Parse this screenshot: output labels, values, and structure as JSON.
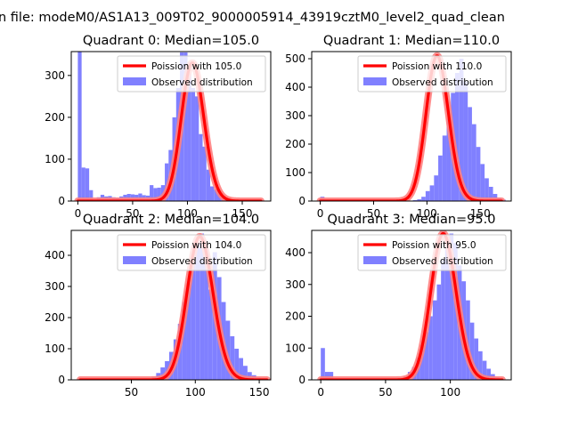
{
  "figure_title": "n file: modeM0/AS1A13_009T02_9000005914_43919cztM0_level2_quad_clean",
  "colors": {
    "histogram": "#8080ff",
    "poisson_line": "#ff0000",
    "poisson_glow": "#ff8080",
    "axes": "#000000"
  },
  "chart_data": [
    {
      "type": "bar",
      "title": "Quadrant 0: Median=105.0",
      "xlim": [
        -6,
        176
      ],
      "ylim": [
        0,
        357
      ],
      "xticks": [
        0,
        50,
        100,
        150
      ],
      "yticks": [
        0,
        100,
        200,
        300
      ],
      "grid": false,
      "legend_position": "top-right",
      "hist": {
        "name": "Observed distribution",
        "bin_start": 0,
        "bin_width": 3.45,
        "values": [
          357,
          80,
          78,
          26,
          3,
          9,
          15,
          11,
          12,
          9,
          8,
          11,
          15,
          17,
          16,
          15,
          18,
          14,
          13,
          38,
          31,
          32,
          38,
          90,
          122,
          200,
          270,
          355,
          355,
          305,
          270,
          250,
          160,
          130,
          75,
          35,
          28,
          20,
          12,
          4,
          2,
          1
        ]
      },
      "poisson": {
        "name": "Poission with 105.0",
        "mean": 105.0,
        "peak": 330,
        "x_range": [
          0,
          167
        ]
      }
    },
    {
      "type": "bar",
      "title": "Quadrant 1: Median=110.0",
      "xlim": [
        -8,
        179
      ],
      "ylim": [
        0,
        525
      ],
      "xticks": [
        0,
        50,
        100,
        150
      ],
      "yticks": [
        0,
        100,
        200,
        300,
        400,
        500
      ],
      "grid": false,
      "legend_position": "top-right",
      "hist": {
        "name": "Observed distribution",
        "bin_start": 0,
        "bin_width": 3.95,
        "values": [
          15,
          0,
          0,
          0,
          0,
          0,
          0,
          0,
          0,
          0,
          0,
          0,
          0,
          0,
          0,
          0,
          0,
          0,
          0,
          0,
          0,
          1,
          3,
          6,
          15,
          35,
          55,
          90,
          160,
          230,
          290,
          380,
          450,
          500,
          420,
          330,
          270,
          190,
          130,
          80,
          50,
          25,
          12,
          5,
          1
        ]
      },
      "poisson": {
        "name": "Poission with 110.0",
        "mean": 110.0,
        "peak": 510,
        "x_range": [
          0,
          170
        ]
      }
    },
    {
      "type": "bar",
      "title": "Quadrant 2: Median=104.0",
      "xlim": [
        3,
        159
      ],
      "ylim": [
        0,
        480
      ],
      "xticks": [
        50,
        100,
        150
      ],
      "yticks": [
        0,
        100,
        200,
        300,
        400
      ],
      "grid": false,
      "legend_position": "top-right",
      "hist": {
        "name": "Observed distribution",
        "bin_start": 66,
        "bin_width": 3.4,
        "values": [
          10,
          22,
          40,
          60,
          90,
          130,
          180,
          250,
          310,
          380,
          440,
          470,
          420,
          290,
          410,
          330,
          250,
          190,
          140,
          100,
          70,
          45,
          25,
          15,
          7
        ]
      },
      "poisson": {
        "name": "Poission with 104.0",
        "mean": 104.0,
        "peak": 460,
        "x_range": [
          10,
          156
        ]
      }
    },
    {
      "type": "bar",
      "title": "Quadrant 3: Median=95.0",
      "xlim": [
        -7,
        147
      ],
      "ylim": [
        0,
        470
      ],
      "xticks": [
        0,
        50,
        100
      ],
      "yticks": [
        0,
        100,
        200,
        300,
        400
      ],
      "grid": false,
      "legend_position": "top-right",
      "hist": {
        "name": "Observed distribution",
        "bin_start": 0,
        "bin_width": 3.2,
        "values": [
          100,
          25,
          25,
          0,
          0,
          0,
          0,
          0,
          0,
          0,
          0,
          0,
          0,
          0,
          0,
          0,
          0,
          0,
          1,
          5,
          10,
          25,
          40,
          70,
          110,
          150,
          200,
          250,
          300,
          380,
          420,
          460,
          430,
          360,
          310,
          250,
          180,
          130,
          90,
          60,
          35,
          18,
          8,
          3
        ]
      },
      "poisson": {
        "name": "Poission with 95.0",
        "mean": 95.0,
        "peak": 460,
        "x_range": [
          0,
          140
        ]
      }
    }
  ]
}
